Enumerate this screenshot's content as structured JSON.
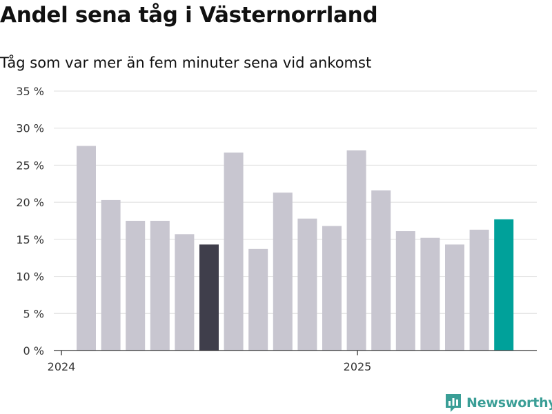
{
  "chart_data": {
    "type": "bar",
    "title": "Andel sena tåg i Västernorrland",
    "subtitle": "Tåg som var mer än fem minuter sena vid ankomst",
    "y_ticks": [
      "0 %",
      "5 %",
      "10 %",
      "15 %",
      "20 %",
      "25 %",
      "30 %",
      "35 %"
    ],
    "ylim": [
      0,
      35
    ],
    "x_ticks": [
      "2024",
      "2025"
    ],
    "categories": [
      "2024-01",
      "2024-02",
      "2024-03",
      "2024-04",
      "2024-05",
      "2024-06",
      "2024-07",
      "2024-08",
      "2024-09",
      "2024-10",
      "2024-11",
      "2024-12",
      "2025-01",
      "2025-02",
      "2025-03",
      "2025-04",
      "2025-05",
      "2025-06"
    ],
    "values": [
      27.6,
      20.3,
      17.5,
      17.5,
      15.7,
      14.3,
      26.7,
      13.7,
      21.3,
      17.8,
      16.8,
      27.0,
      21.6,
      16.1,
      15.2,
      14.3,
      16.3,
      17.7
    ],
    "highlight_dark_index": 5,
    "highlight_accent_index": 17,
    "colors": {
      "default": "#c8c6d0",
      "dark": "#3f3e4b",
      "accent": "#00a19a",
      "grid": "#dddddd",
      "axis": "#333333"
    },
    "grid": true
  },
  "brand": {
    "name": "Newsworthy",
    "icon": "newsworthy-logo-icon",
    "color": "#3a9e96"
  }
}
